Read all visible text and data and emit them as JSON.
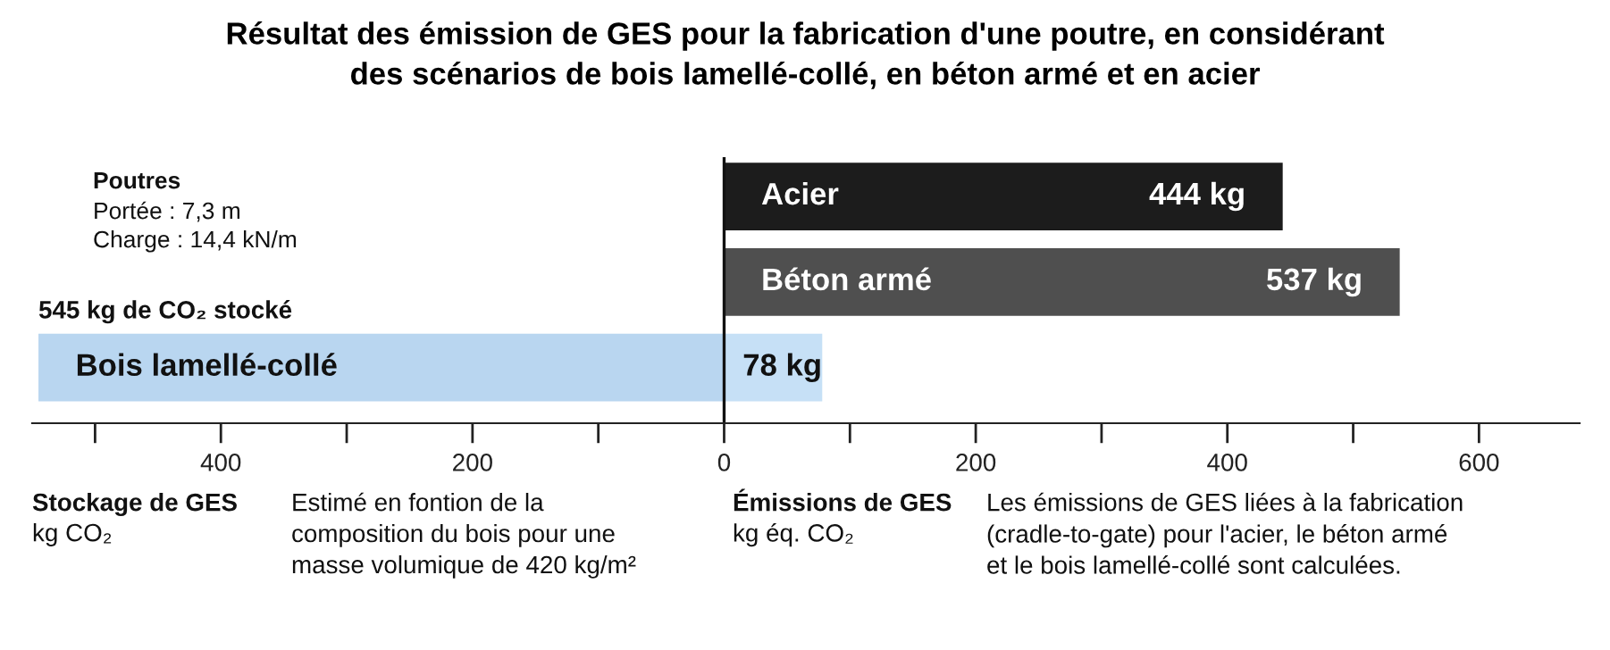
{
  "chart_data": {
    "type": "bar",
    "orientation": "horizontal",
    "title": "Résultat des émission de GES pour la fabrication d'une poutre, en considérant\ndes scénarios de bois lamellé-collé, en béton armé et en acier",
    "categories": [
      "Acier",
      "Béton armé",
      "Bois lamellé-collé"
    ],
    "series": [
      {
        "values": [
          444,
          537,
          78
        ],
        "colors": [
          "#1c1c1c",
          "#4f4f4f",
          "#c6e0f6"
        ],
        "value_labels": [
          "444 kg",
          "537 kg",
          "78 kg"
        ]
      },
      {
        "values": [
          null,
          null,
          -545
        ],
        "color": "#b9d6f0"
      }
    ],
    "xlim": [
      -550,
      680
    ],
    "xticks": [
      {
        "value": -500,
        "label": null
      },
      {
        "value": -400,
        "label": "400"
      },
      {
        "value": -300,
        "label": null
      },
      {
        "value": -200,
        "label": "200"
      },
      {
        "value": -100,
        "label": null
      },
      0,
      {
        "value": 100,
        "label": null
      },
      200,
      {
        "value": 300,
        "label": null
      },
      400,
      {
        "value": 500,
        "label": null
      },
      600
    ],
    "grid": false,
    "tick_labels": "x",
    "annotations": [
      {
        "text": "545 kg de CO₂ stocké",
        "x": -545,
        "y": "Bois lamellé-collé"
      },
      "Poutres",
      "Portée : 7,3 m",
      "Charge : 14,4 kN/m",
      "Stockage de GES",
      "kg CO₂",
      "Estimé en fontion de la\ncomposition du bois pour une\nmasse volumique de 420 kg/m²",
      "Émissions de GES",
      "kg éq. CO₂",
      "Les émissions de GES liées à la fabrication\n(cradle-to-gate) pour l'acier, le béton armé\net le bois lamellé-collé sont calculées."
    ]
  }
}
